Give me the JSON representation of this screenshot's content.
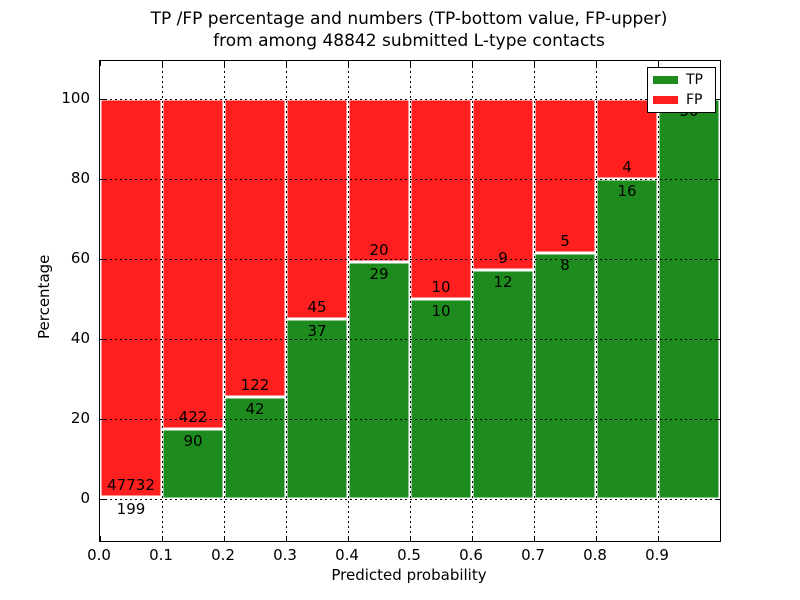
{
  "title": {
    "line1": "TP /FP percentage and numbers (TP-bottom value, FP-upper)",
    "line2": "from among 48842 submitted L-type contacts"
  },
  "axes": {
    "xlabel": "Predicted probability",
    "ylabel": "Percentage",
    "x_tick_labels": [
      "0.0",
      "0.1",
      "0.2",
      "0.3",
      "0.4",
      "0.5",
      "0.6",
      "0.7",
      "0.8",
      "0.9"
    ],
    "y_tick_labels": [
      "0",
      "20",
      "40",
      "60",
      "80",
      "100"
    ]
  },
  "legend": {
    "items": [
      {
        "label": "TP",
        "color": "#1e8b1e"
      },
      {
        "label": "FP",
        "color": "#ff1f1f"
      }
    ]
  },
  "colors": {
    "tp": "#1e8b1e",
    "fp": "#ff1f1f",
    "grid": "#000000",
    "background": "#ffffff"
  },
  "chart_data": {
    "type": "bar",
    "stacked": true,
    "title": "TP /FP percentage and numbers (TP-bottom value, FP-upper) from among 48842 submitted L-type contacts",
    "xlabel": "Predicted probability",
    "ylabel": "Percentage",
    "xlim": [
      0.0,
      1.0
    ],
    "ylim": [
      -10.5,
      109.5
    ],
    "grid": true,
    "legend_position": "upper right",
    "total_contacts": 48842,
    "bin_width": 0.1,
    "categories": [
      "0.0-0.1",
      "0.1-0.2",
      "0.2-0.3",
      "0.3-0.4",
      "0.4-0.5",
      "0.5-0.6",
      "0.6-0.7",
      "0.7-0.8",
      "0.8-0.9",
      "0.9-1.0"
    ],
    "series": [
      {
        "name": "TP",
        "color": "#1e8b1e",
        "counts": [
          199,
          90,
          42,
          37,
          29,
          10,
          12,
          8,
          16,
          30
        ]
      },
      {
        "name": "FP",
        "color": "#ff1f1f",
        "counts": [
          47732,
          422,
          122,
          45,
          20,
          10,
          9,
          5,
          4,
          0
        ]
      }
    ],
    "bars": [
      {
        "x0": 0.0,
        "x1": 0.1,
        "tp": 199,
        "fp": 47732,
        "tp_pct": 0.42,
        "tp_label": "199",
        "fp_label": "47732"
      },
      {
        "x0": 0.1,
        "x1": 0.2,
        "tp": 90,
        "fp": 422,
        "tp_pct": 17.58,
        "tp_label": "90",
        "fp_label": "422"
      },
      {
        "x0": 0.2,
        "x1": 0.3,
        "tp": 42,
        "fp": 122,
        "tp_pct": 25.61,
        "tp_label": "42",
        "fp_label": "122"
      },
      {
        "x0": 0.3,
        "x1": 0.4,
        "tp": 37,
        "fp": 45,
        "tp_pct": 45.12,
        "tp_label": "37",
        "fp_label": "45"
      },
      {
        "x0": 0.4,
        "x1": 0.5,
        "tp": 29,
        "fp": 20,
        "tp_pct": 59.18,
        "tp_label": "29",
        "fp_label": "20"
      },
      {
        "x0": 0.5,
        "x1": 0.6,
        "tp": 10,
        "fp": 10,
        "tp_pct": 50.0,
        "tp_label": "10",
        "fp_label": "10"
      },
      {
        "x0": 0.6,
        "x1": 0.7,
        "tp": 12,
        "fp": 9,
        "tp_pct": 57.14,
        "tp_label": "12",
        "fp_label": "9"
      },
      {
        "x0": 0.7,
        "x1": 0.8,
        "tp": 8,
        "fp": 5,
        "tp_pct": 61.54,
        "tp_label": "8",
        "fp_label": "5"
      },
      {
        "x0": 0.8,
        "x1": 0.9,
        "tp": 16,
        "fp": 4,
        "tp_pct": 80.0,
        "tp_label": "16",
        "fp_label": "4"
      },
      {
        "x0": 0.9,
        "x1": 1.0,
        "tp": 30,
        "fp": 0,
        "tp_pct": 100.0,
        "tp_label": "30",
        "fp_label": ""
      }
    ]
  }
}
